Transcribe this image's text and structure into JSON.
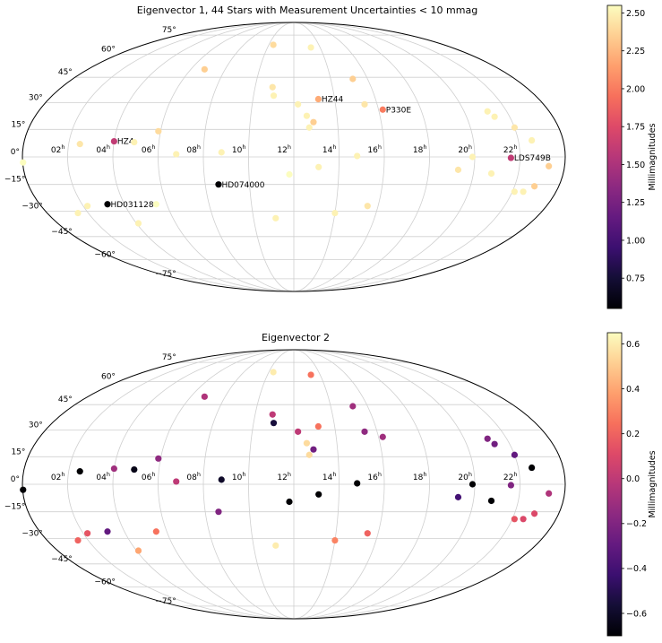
{
  "chart_data": [
    {
      "type": "scatter",
      "projection": "mollweide",
      "title": "Eigenvector 1, 44 Stars with Measurement Uncertainties < 10 mmag",
      "colorbar_label": "Millimagnitudes",
      "colorbar_ticks": [
        "2.50",
        "2.25",
        "2.00",
        "1.75",
        "1.50",
        "1.25",
        "1.00",
        "0.75"
      ],
      "clim": [
        0.55,
        2.55
      ],
      "x_unit": "hour (RA)",
      "y_unit": "deg (Dec)",
      "points": [
        {
          "ra": 10.36,
          "dec": 67,
          "v": 2.4
        },
        {
          "ra": 13.3,
          "dec": 65,
          "v": 2.5
        },
        {
          "ra": 6.8,
          "dec": 50,
          "v": 2.35
        },
        {
          "ra": 15.2,
          "dec": 44,
          "v": 2.35
        },
        {
          "ra": 10.9,
          "dec": 39,
          "v": 2.45
        },
        {
          "ra": 11,
          "dec": 34,
          "v": 2.5
        },
        {
          "ra": 13.2,
          "dec": 32,
          "v": 2.2,
          "label": "HZ44"
        },
        {
          "ra": 12.2,
          "dec": 29,
          "v": 2.5
        },
        {
          "ra": 15.4,
          "dec": 29,
          "v": 2.45
        },
        {
          "ra": 16.2,
          "dec": 26,
          "v": 2.0,
          "label": "P330E"
        },
        {
          "ra": 21.1,
          "dec": 25,
          "v": 2.5
        },
        {
          "ra": 21.3,
          "dec": 22,
          "v": 2.5
        },
        {
          "ra": 12.6,
          "dec": 22.5,
          "v": 2.5
        },
        {
          "ra": 12.9,
          "dec": 19,
          "v": 2.35
        },
        {
          "ra": 12.7,
          "dec": 16,
          "v": 2.5
        },
        {
          "ra": 22,
          "dec": 16,
          "v": 2.45
        },
        {
          "ra": 5.9,
          "dec": 14,
          "v": 2.4
        },
        {
          "ra": 4,
          "dec": 8.5,
          "v": 1.6,
          "label": "HZ4"
        },
        {
          "ra": 4.9,
          "dec": 8,
          "v": 2.5
        },
        {
          "ra": 22.6,
          "dec": 9,
          "v": 2.5
        },
        {
          "ra": 2.5,
          "dec": 7,
          "v": 2.45
        },
        {
          "ra": 6.8,
          "dec": 1.5,
          "v": 2.5
        },
        {
          "ra": 8.8,
          "dec": 2.5,
          "v": 2.5
        },
        {
          "ra": 14.8,
          "dec": 0.5,
          "v": 2.5
        },
        {
          "ra": 19.9,
          "dec": 0,
          "v": 2.5
        },
        {
          "ra": 21.6,
          "dec": -0.5,
          "v": 1.6,
          "label": "LDS749B"
        },
        {
          "ra": 0.02,
          "dec": -3,
          "v": 2.55
        },
        {
          "ra": 23.3,
          "dec": -5,
          "v": 2.35
        },
        {
          "ra": 13.1,
          "dec": -5.5,
          "v": 2.5
        },
        {
          "ra": 19.3,
          "dec": -7,
          "v": 2.45
        },
        {
          "ra": 20.8,
          "dec": -9,
          "v": 2.5
        },
        {
          "ra": 11.8,
          "dec": -9.5,
          "v": 2.55
        },
        {
          "ra": 8.6,
          "dec": -15,
          "v": 0.55,
          "label": "HD074000"
        },
        {
          "ra": 22.9,
          "dec": -16,
          "v": 2.35
        },
        {
          "ra": 22.1,
          "dec": -19,
          "v": 2.5
        },
        {
          "ra": 22.5,
          "dec": -19,
          "v": 2.5
        },
        {
          "ra": 3.2,
          "dec": -26,
          "v": 0.55,
          "label": "HD031128"
        },
        {
          "ra": 2.2,
          "dec": -27,
          "v": 2.5
        },
        {
          "ra": 15.5,
          "dec": -27,
          "v": 2.45
        },
        {
          "ra": 1.5,
          "dec": -31,
          "v": 2.5
        },
        {
          "ra": 14,
          "dec": -31,
          "v": 2.5
        },
        {
          "ra": 11.1,
          "dec": -34,
          "v": 2.5
        },
        {
          "ra": 4.1,
          "dec": -37,
          "v": 2.5
        },
        {
          "ra": 5.5,
          "dec": -26,
          "v": 2.55
        }
      ]
    },
    {
      "type": "scatter",
      "projection": "mollweide",
      "title": "Eigenvector 2",
      "colorbar_label": "Millimagnitudes",
      "colorbar_ticks": [
        "0.6",
        "0.4",
        "0.2",
        "0.0",
        "−0.2",
        "−0.4",
        "−0.6"
      ],
      "clim": [
        -0.7,
        0.65
      ],
      "x_unit": "hour (RA)",
      "y_unit": "deg (Dec)",
      "points": [
        {
          "ra": 10.36,
          "dec": 67,
          "v": 0.6
        },
        {
          "ra": 13.3,
          "dec": 65,
          "v": 0.25
        },
        {
          "ra": 6.8,
          "dec": 50,
          "v": -0.05
        },
        {
          "ra": 15.2,
          "dec": 44,
          "v": -0.1
        },
        {
          "ra": 10.9,
          "dec": 39,
          "v": 0.0
        },
        {
          "ra": 11,
          "dec": 34,
          "v": -0.55
        },
        {
          "ra": 13.2,
          "dec": 32,
          "v": 0.25
        },
        {
          "ra": 12.2,
          "dec": 29,
          "v": 0.0
        },
        {
          "ra": 15.4,
          "dec": 29,
          "v": -0.15
        },
        {
          "ra": 16.2,
          "dec": 26,
          "v": -0.1
        },
        {
          "ra": 21.1,
          "dec": 25,
          "v": -0.2
        },
        {
          "ra": 21.3,
          "dec": 22,
          "v": -0.25
        },
        {
          "ra": 12.6,
          "dec": 22.5,
          "v": 0.55
        },
        {
          "ra": 12.9,
          "dec": 19,
          "v": -0.25
        },
        {
          "ra": 12.7,
          "dec": 16,
          "v": 0.55
        },
        {
          "ra": 22,
          "dec": 16,
          "v": -0.3
        },
        {
          "ra": 5.9,
          "dec": 14,
          "v": -0.15
        },
        {
          "ra": 4,
          "dec": 8.5,
          "v": -0.1
        },
        {
          "ra": 4.9,
          "dec": 8,
          "v": -0.65
        },
        {
          "ra": 22.6,
          "dec": 9,
          "v": -0.7
        },
        {
          "ra": 2.5,
          "dec": 7,
          "v": -0.7
        },
        {
          "ra": 6.8,
          "dec": 1.5,
          "v": 0.0
        },
        {
          "ra": 8.8,
          "dec": 2.5,
          "v": -0.6
        },
        {
          "ra": 14.8,
          "dec": 0.5,
          "v": -0.7
        },
        {
          "ra": 19.9,
          "dec": 0,
          "v": -0.7
        },
        {
          "ra": 21.6,
          "dec": -0.5,
          "v": -0.2
        },
        {
          "ra": 0.02,
          "dec": -3,
          "v": -0.7
        },
        {
          "ra": 23.3,
          "dec": -5,
          "v": -0.05
        },
        {
          "ra": 13.1,
          "dec": -5.5,
          "v": -0.7
        },
        {
          "ra": 19.3,
          "dec": -7,
          "v": -0.4
        },
        {
          "ra": 20.8,
          "dec": -9,
          "v": -0.7
        },
        {
          "ra": 11.8,
          "dec": -9.5,
          "v": -0.7
        },
        {
          "ra": 8.6,
          "dec": -15,
          "v": -0.2
        },
        {
          "ra": 22.9,
          "dec": -16,
          "v": 0.1
        },
        {
          "ra": 22.1,
          "dec": -19,
          "v": 0.15
        },
        {
          "ra": 22.5,
          "dec": -19,
          "v": 0.1
        },
        {
          "ra": 3.2,
          "dec": -26,
          "v": -0.3
        },
        {
          "ra": 2.2,
          "dec": -27,
          "v": 0.15
        },
        {
          "ra": 15.5,
          "dec": -27,
          "v": 0.2
        },
        {
          "ra": 1.5,
          "dec": -31,
          "v": 0.2
        },
        {
          "ra": 14,
          "dec": -31,
          "v": 0.3
        },
        {
          "ra": 11.1,
          "dec": -34,
          "v": 0.6
        },
        {
          "ra": 4.1,
          "dec": -37,
          "v": 0.4
        },
        {
          "ra": 5.5,
          "dec": -26,
          "v": 0.25
        }
      ]
    }
  ],
  "axes": {
    "ra_ticks": [
      "02",
      "04",
      "06",
      "08",
      "10",
      "12",
      "14",
      "16",
      "18",
      "20",
      "22"
    ],
    "ra_superscript": "h",
    "dec_ticks": [
      "75°",
      "60°",
      "45°",
      "30°",
      "15°",
      "0°",
      "−15°",
      "−30°",
      "−45°",
      "−60°",
      "−75°"
    ]
  },
  "colormap": [
    "#000004",
    "#140e36",
    "#3b0f70",
    "#641a80",
    "#8c2981",
    "#b73779",
    "#de4968",
    "#f7705c",
    "#fe9f6d",
    "#fecf92",
    "#fcfdbf"
  ]
}
